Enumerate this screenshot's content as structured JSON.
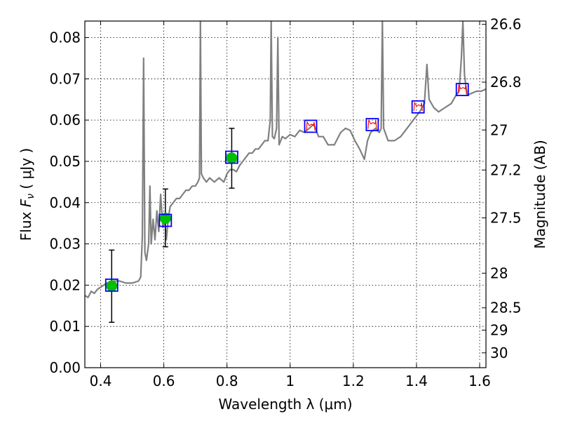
{
  "chart_data": {
    "type": "scatter",
    "title": "",
    "xlabel": "Wavelength  λ (μm)",
    "ylabel": "Flux  F_ν  ( μJy )",
    "ylabel_right": "Magnitude (AB)",
    "xlim": [
      0.35,
      1.62
    ],
    "ylim": [
      0.0,
      0.084
    ],
    "grid": true,
    "x_ticks": [
      0.4,
      0.6,
      0.8,
      1.0,
      1.2,
      1.4,
      1.6
    ],
    "x_tick_labels": [
      "0.4",
      "0.6",
      "0.8",
      "1",
      "1.2",
      "1.4",
      "1.6"
    ],
    "y_ticks": [
      0.0,
      0.01,
      0.02,
      0.03,
      0.04,
      0.05,
      0.06,
      0.07,
      0.08
    ],
    "y_tick_labels": [
      "0.00",
      "0.01",
      "0.02",
      "0.03",
      "0.04",
      "0.05",
      "0.06",
      "0.07",
      "0.08"
    ],
    "right_ticks": [
      {
        "label": "26.6",
        "flux": 0.0832
      },
      {
        "label": "26.8",
        "flux": 0.0692
      },
      {
        "label": "27",
        "flux": 0.0576
      },
      {
        "label": "27.2",
        "flux": 0.0479
      },
      {
        "label": "27.5",
        "flux": 0.0363
      },
      {
        "label": "28",
        "flux": 0.0229
      },
      {
        "label": "28.5",
        "flux": 0.0145
      },
      {
        "label": "29",
        "flux": 0.0091
      },
      {
        "label": "30",
        "flux": 0.0036
      }
    ],
    "model_spectrum": {
      "color": "#808080",
      "points": [
        [
          0.35,
          0.0175
        ],
        [
          0.36,
          0.017
        ],
        [
          0.37,
          0.0185
        ],
        [
          0.38,
          0.018
        ],
        [
          0.39,
          0.019
        ],
        [
          0.4,
          0.0195
        ],
        [
          0.42,
          0.0205
        ],
        [
          0.44,
          0.021
        ],
        [
          0.46,
          0.021
        ],
        [
          0.48,
          0.0205
        ],
        [
          0.5,
          0.0205
        ],
        [
          0.52,
          0.021
        ],
        [
          0.527,
          0.022
        ],
        [
          0.532,
          0.032
        ],
        [
          0.536,
          0.075
        ],
        [
          0.54,
          0.028
        ],
        [
          0.545,
          0.026
        ],
        [
          0.552,
          0.03
        ],
        [
          0.556,
          0.044
        ],
        [
          0.56,
          0.03
        ],
        [
          0.566,
          0.036
        ],
        [
          0.572,
          0.031
        ],
        [
          0.578,
          0.038
        ],
        [
          0.584,
          0.033
        ],
        [
          0.59,
          0.042
        ],
        [
          0.597,
          0.034
        ],
        [
          0.603,
          0.036
        ],
        [
          0.608,
          0.031
        ],
        [
          0.614,
          0.036
        ],
        [
          0.62,
          0.039
        ],
        [
          0.63,
          0.04
        ],
        [
          0.64,
          0.041
        ],
        [
          0.65,
          0.041
        ],
        [
          0.66,
          0.042
        ],
        [
          0.67,
          0.043
        ],
        [
          0.68,
          0.043
        ],
        [
          0.69,
          0.044
        ],
        [
          0.7,
          0.044
        ],
        [
          0.708,
          0.045
        ],
        [
          0.713,
          0.046
        ],
        [
          0.716,
          0.084
        ],
        [
          0.719,
          0.047
        ],
        [
          0.725,
          0.046
        ],
        [
          0.735,
          0.045
        ],
        [
          0.745,
          0.046
        ],
        [
          0.76,
          0.045
        ],
        [
          0.775,
          0.046
        ],
        [
          0.79,
          0.045
        ],
        [
          0.8,
          0.047
        ],
        [
          0.81,
          0.048
        ],
        [
          0.82,
          0.048
        ],
        [
          0.83,
          0.0475
        ],
        [
          0.84,
          0.049
        ],
        [
          0.85,
          0.05
        ],
        [
          0.86,
          0.051
        ],
        [
          0.87,
          0.052
        ],
        [
          0.88,
          0.052
        ],
        [
          0.89,
          0.053
        ],
        [
          0.9,
          0.053
        ],
        [
          0.91,
          0.054
        ],
        [
          0.92,
          0.055
        ],
        [
          0.93,
          0.055
        ],
        [
          0.937,
          0.06
        ],
        [
          0.94,
          0.084
        ],
        [
          0.944,
          0.056
        ],
        [
          0.95,
          0.0555
        ],
        [
          0.957,
          0.058
        ],
        [
          0.961,
          0.08
        ],
        [
          0.965,
          0.054
        ],
        [
          0.975,
          0.056
        ],
        [
          0.985,
          0.0555
        ],
        [
          1.0,
          0.0565
        ],
        [
          1.015,
          0.056
        ],
        [
          1.03,
          0.0575
        ],
        [
          1.045,
          0.057
        ],
        [
          1.06,
          0.058
        ],
        [
          1.075,
          0.059
        ],
        [
          1.09,
          0.056
        ],
        [
          1.105,
          0.056
        ],
        [
          1.12,
          0.054
        ],
        [
          1.14,
          0.054
        ],
        [
          1.16,
          0.057
        ],
        [
          1.175,
          0.058
        ],
        [
          1.19,
          0.0575
        ],
        [
          1.205,
          0.055
        ],
        [
          1.22,
          0.053
        ],
        [
          1.235,
          0.0505
        ],
        [
          1.245,
          0.055
        ],
        [
          1.255,
          0.057
        ],
        [
          1.27,
          0.058
        ],
        [
          1.282,
          0.057
        ],
        [
          1.288,
          0.058
        ],
        [
          1.292,
          0.084
        ],
        [
          1.296,
          0.058
        ],
        [
          1.31,
          0.055
        ],
        [
          1.33,
          0.055
        ],
        [
          1.35,
          0.056
        ],
        [
          1.37,
          0.058
        ],
        [
          1.39,
          0.06
        ],
        [
          1.41,
          0.062
        ],
        [
          1.425,
          0.064
        ],
        [
          1.433,
          0.0735
        ],
        [
          1.44,
          0.065
        ],
        [
          1.455,
          0.063
        ],
        [
          1.47,
          0.062
        ],
        [
          1.49,
          0.063
        ],
        [
          1.51,
          0.064
        ],
        [
          1.525,
          0.066
        ],
        [
          1.535,
          0.067
        ],
        [
          1.542,
          0.075
        ],
        [
          1.547,
          0.084
        ],
        [
          1.552,
          0.071
        ],
        [
          1.56,
          0.066
        ],
        [
          1.575,
          0.0665
        ],
        [
          1.59,
          0.067
        ],
        [
          1.605,
          0.067
        ],
        [
          1.62,
          0.0675
        ]
      ]
    },
    "series": [
      {
        "marker": "circle",
        "color": "#00bf00",
        "points": [
          {
            "x": 0.435,
            "y": 0.0198,
            "yerr_low": 0.011,
            "yerr_high": 0.0285
          },
          {
            "x": 0.605,
            "y": 0.0362,
            "yerr_low": 0.0293,
            "yerr_high": 0.0433
          },
          {
            "x": 0.815,
            "y": 0.0508,
            "yerr_low": 0.0435,
            "yerr_high": 0.058
          }
        ]
      },
      {
        "marker": "square",
        "color": "#0000ff",
        "points": [
          {
            "x": 0.435,
            "y": 0.02
          },
          {
            "x": 0.605,
            "y": 0.0357
          },
          {
            "x": 0.815,
            "y": 0.051
          },
          {
            "x": 1.065,
            "y": 0.0585
          },
          {
            "x": 1.26,
            "y": 0.0589
          },
          {
            "x": 1.405,
            "y": 0.0632
          },
          {
            "x": 1.545,
            "y": 0.0674
          }
        ]
      },
      {
        "marker": "filter-curve",
        "color": "#ff0000",
        "points": [
          {
            "x": 1.065,
            "y": 0.0585
          },
          {
            "x": 1.26,
            "y": 0.0589
          },
          {
            "x": 1.405,
            "y": 0.0632
          },
          {
            "x": 1.545,
            "y": 0.0674
          }
        ]
      }
    ]
  }
}
